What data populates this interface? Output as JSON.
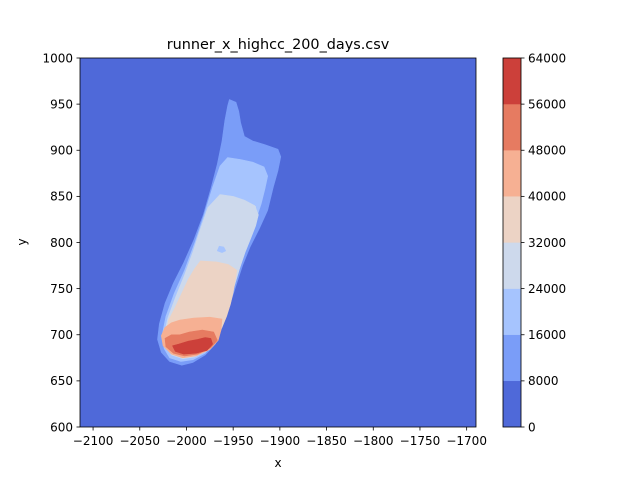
{
  "chart_data": {
    "type": "contour",
    "title": "runner_x_highcc_200_days.csv",
    "xlabel": "x",
    "ylabel": "y",
    "xlim": [
      -2114,
      -1690
    ],
    "ylim": [
      600,
      1000
    ],
    "x_ticks": [
      -2100,
      -2050,
      -2000,
      -1950,
      -1900,
      -1850,
      -1800,
      -1750,
      -1700
    ],
    "x_tick_labels": [
      "−2100",
      "−2050",
      "−2000",
      "−1950",
      "−1900",
      "−1850",
      "−1800",
      "−1750",
      "−1700"
    ],
    "y_ticks": [
      600,
      650,
      700,
      750,
      800,
      850,
      900,
      950,
      1000
    ],
    "y_tick_labels": [
      "600",
      "650",
      "700",
      "750",
      "800",
      "850",
      "900",
      "950",
      "1000"
    ],
    "grid": false,
    "colorbar": {
      "levels": [
        0,
        8000,
        16000,
        24000,
        32000,
        40000,
        48000,
        56000,
        64000
      ],
      "tick_labels": [
        "0",
        "8000",
        "16000",
        "24000",
        "32000",
        "40000",
        "48000",
        "56000",
        "64000"
      ],
      "colors": [
        "#4f69d9",
        "#7a9df8",
        "#a6c4fe",
        "#cdd9ec",
        "#ecd3c5",
        "#f6b093",
        "#e67b61",
        "#cc403a"
      ]
    },
    "background_level_color": "#4f69d9",
    "regions": [
      {
        "level_range": [
          8000,
          64000
        ],
        "color": "#7a9df8",
        "polygon": [
          [
            -1954,
            955
          ],
          [
            -1947,
            952
          ],
          [
            -1944,
            942
          ],
          [
            -1942,
            930
          ],
          [
            -1938,
            915
          ],
          [
            -1929,
            910
          ],
          [
            -1916,
            906
          ],
          [
            -1902,
            901
          ],
          [
            -1899,
            893
          ],
          [
            -1902,
            878
          ],
          [
            -1907,
            860
          ],
          [
            -1913,
            835
          ],
          [
            -1922,
            815
          ],
          [
            -1932,
            795
          ],
          [
            -1940,
            775
          ],
          [
            -1948,
            750
          ],
          [
            -1956,
            725
          ],
          [
            -1963,
            705
          ],
          [
            -1969,
            690
          ],
          [
            -1980,
            678
          ],
          [
            -1993,
            670
          ],
          [
            -2005,
            667
          ],
          [
            -2018,
            671
          ],
          [
            -2027,
            681
          ],
          [
            -2031,
            695
          ],
          [
            -2029,
            712
          ],
          [
            -2023,
            734
          ],
          [
            -2014,
            756
          ],
          [
            -2003,
            778
          ],
          [
            -1992,
            803
          ],
          [
            -1982,
            830
          ],
          [
            -1974,
            858
          ],
          [
            -1967,
            885
          ],
          [
            -1962,
            910
          ],
          [
            -1959,
            932
          ],
          [
            -1956,
            948
          ]
        ]
      },
      {
        "level_range": [
          16000,
          64000
        ],
        "color": "#a6c4fe",
        "polygon": [
          [
            -1956,
            892
          ],
          [
            -1942,
            890
          ],
          [
            -1929,
            887
          ],
          [
            -1917,
            882
          ],
          [
            -1913,
            872
          ],
          [
            -1916,
            858
          ],
          [
            -1920,
            842
          ],
          [
            -1924,
            830
          ],
          [
            -1930,
            815
          ],
          [
            -1937,
            797
          ],
          [
            -1943,
            780
          ],
          [
            -1950,
            758
          ],
          [
            -1957,
            735
          ],
          [
            -1963,
            712
          ],
          [
            -1969,
            695
          ],
          [
            -1980,
            680
          ],
          [
            -1993,
            673
          ],
          [
            -2006,
            671
          ],
          [
            -2018,
            675
          ],
          [
            -2024,
            685
          ],
          [
            -2026,
            700
          ],
          [
            -2022,
            720
          ],
          [
            -2013,
            745
          ],
          [
            -2002,
            770
          ],
          [
            -1991,
            800
          ],
          [
            -1981,
            830
          ],
          [
            -1972,
            860
          ],
          [
            -1964,
            883
          ]
        ]
      },
      {
        "level_range": [
          24000,
          64000
        ],
        "color": "#cdd9ec",
        "polygon": [
          [
            -1964,
            852
          ],
          [
            -1950,
            850
          ],
          [
            -1938,
            846
          ],
          [
            -1927,
            840
          ],
          [
            -1923,
            830
          ],
          [
            -1926,
            818
          ],
          [
            -1931,
            805
          ],
          [
            -1937,
            790
          ],
          [
            -1943,
            772
          ],
          [
            -1949,
            752
          ],
          [
            -1955,
            732
          ],
          [
            -1961,
            712
          ],
          [
            -1966,
            698
          ],
          [
            -1977,
            683
          ],
          [
            -1991,
            676
          ],
          [
            -2004,
            674
          ],
          [
            -2016,
            678
          ],
          [
            -2023,
            688
          ],
          [
            -2024,
            700
          ],
          [
            -2020,
            718
          ],
          [
            -2012,
            740
          ],
          [
            -2002,
            765
          ],
          [
            -1993,
            790
          ],
          [
            -1985,
            815
          ],
          [
            -1977,
            838
          ]
        ]
      },
      {
        "level_range": [
          40000,
          48000
        ],
        "color": "#cdd9ec",
        "polygon": [
          [
            -1931,
            842
          ],
          [
            -1926,
            839
          ],
          [
            -1925,
            830
          ],
          [
            -1928,
            833
          ]
        ]
      },
      {
        "level_range": [
          32000,
          64000
        ],
        "color": "#ecd3c5",
        "polygon": [
          [
            -1985,
            780
          ],
          [
            -1968,
            779
          ],
          [
            -1955,
            776
          ],
          [
            -1946,
            770
          ],
          [
            -1948,
            758
          ],
          [
            -1950,
            746
          ],
          [
            -1953,
            733
          ],
          [
            -1957,
            720
          ],
          [
            -1962,
            708
          ],
          [
            -1968,
            696
          ],
          [
            -1978,
            684
          ],
          [
            -1991,
            678
          ],
          [
            -2004,
            676
          ],
          [
            -2015,
            680
          ],
          [
            -2022,
            690
          ],
          [
            -2022,
            703
          ],
          [
            -2019,
            716
          ],
          [
            -2012,
            730
          ],
          [
            -2005,
            745
          ],
          [
            -1998,
            760
          ],
          [
            -1991,
            772
          ]
        ]
      },
      {
        "level_range": [
          24000,
          32000
        ],
        "color": "#a6c4fe",
        "polygon": [
          [
            -1965,
            796
          ],
          [
            -1960,
            795
          ],
          [
            -1958,
            791
          ],
          [
            -1962,
            789
          ],
          [
            -1967,
            791
          ]
        ]
      },
      {
        "level_range": [
          40000,
          64000
        ],
        "color": "#f6b093",
        "polygon": [
          [
            -2007,
            716
          ],
          [
            -1992,
            718
          ],
          [
            -1975,
            719
          ],
          [
            -1962,
            717
          ],
          [
            -1963,
            705
          ],
          [
            -1966,
            694
          ],
          [
            -1975,
            684
          ],
          [
            -1990,
            677
          ],
          [
            -2004,
            675
          ],
          [
            -2016,
            679
          ],
          [
            -2025,
            688
          ],
          [
            -2027,
            699
          ],
          [
            -2023,
            708
          ],
          [
            -2016,
            713
          ]
        ]
      },
      {
        "level_range": [
          48000,
          64000
        ],
        "color": "#e67b61",
        "polygon": [
          [
            -2007,
            700
          ],
          [
            -1997,
            703
          ],
          [
            -1983,
            705
          ],
          [
            -1971,
            703
          ],
          [
            -1967,
            694
          ],
          [
            -1974,
            686
          ],
          [
            -1988,
            679
          ],
          [
            -2002,
            677
          ],
          [
            -2014,
            680
          ],
          [
            -2022,
            687
          ],
          [
            -2023,
            696
          ],
          [
            -2016,
            700
          ]
        ]
      },
      {
        "level_range": [
          56000,
          64000
        ],
        "color": "#cc403a",
        "polygon": [
          [
            -1980,
            697
          ],
          [
            -1974,
            696
          ],
          [
            -1972,
            690
          ],
          [
            -1978,
            683
          ],
          [
            -1990,
            680
          ],
          [
            -2003,
            679
          ],
          [
            -2012,
            682
          ],
          [
            -2015,
            688
          ],
          [
            -2008,
            690
          ],
          [
            -1998,
            693
          ],
          [
            -1988,
            695
          ]
        ]
      }
    ]
  }
}
